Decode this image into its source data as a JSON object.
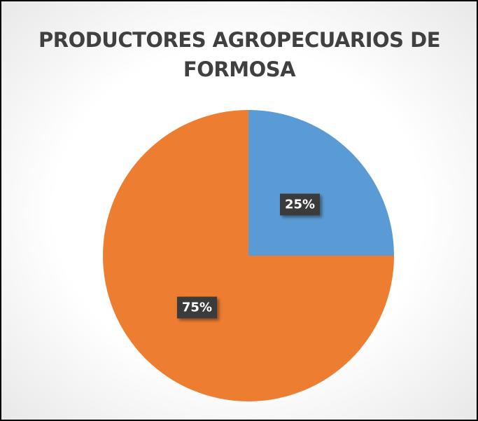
{
  "chart_data": {
    "type": "pie",
    "title": "PRODUCTORES AGROPECUARIOS DE FORMOSA",
    "values": [
      25,
      75
    ],
    "value_labels": [
      "25%",
      "75%"
    ],
    "colors": [
      "#5b9bd5",
      "#ed7d31"
    ]
  }
}
